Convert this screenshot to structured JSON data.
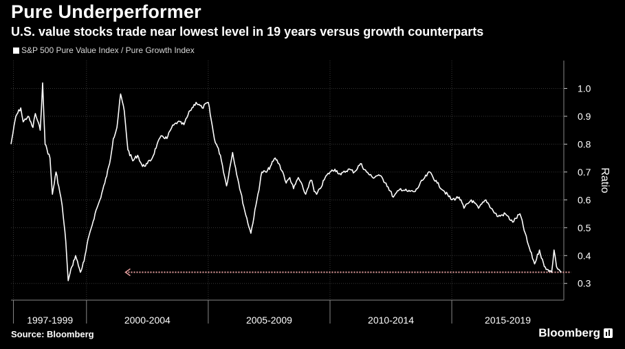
{
  "header": {
    "title": "Pure Underperformer",
    "subtitle": "U.S. value stocks trade near lowest level in 19 years versus growth counterparts"
  },
  "footer": {
    "source": "Source: Bloomberg",
    "brand": "Bloomberg"
  },
  "colors": {
    "background": "#000000",
    "line": "#ffffff",
    "grid": "#3a3a3a",
    "reference_line": "#e8a0a0"
  },
  "chart_data": {
    "type": "line",
    "title": "Pure Underperformer",
    "subtitle": "U.S. value stocks trade near lowest level in 19 years versus growth counterparts",
    "ylabel": "Ratio",
    "xlabel": "",
    "ylim": [
      0.24,
      1.1
    ],
    "xlim": [
      1996.9,
      2019.6
    ],
    "y_axis_position": "right",
    "grid": true,
    "legend": "top-left",
    "yticks": [
      0.3,
      0.4,
      0.5,
      0.6,
      0.7,
      0.8,
      0.9,
      1.0
    ],
    "ytick_labels": [
      "0.3",
      "0.4",
      "0.5",
      "0.6",
      "0.7",
      "0.8",
      "0.9",
      "1.0"
    ],
    "x_periods": [
      {
        "label": "1997-1999",
        "start": 1997,
        "end": 2000
      },
      {
        "label": "2000-2004",
        "start": 2000,
        "end": 2005
      },
      {
        "label": "2005-2009",
        "start": 2005,
        "end": 2010
      },
      {
        "label": "2010-2014",
        "start": 2010,
        "end": 2015
      },
      {
        "label": "2015-2019",
        "start": 2015,
        "end": 2020
      }
    ],
    "series": [
      {
        "name": "S&P 500 Pure Value Index / Pure Growth Index",
        "x": [
          1996.9,
          1997.1,
          1997.3,
          1997.4,
          1997.6,
          1997.8,
          1997.9,
          1998.1,
          1998.2,
          1998.3,
          1998.5,
          1998.6,
          1998.75,
          1998.9,
          1999.0,
          1999.15,
          1999.25,
          1999.4,
          1999.55,
          1999.75,
          1999.9,
          2000.1,
          2000.2,
          2000.35,
          2000.55,
          2000.75,
          2000.95,
          2001.1,
          2001.25,
          2001.4,
          2001.55,
          2001.7,
          2001.9,
          2002.1,
          2002.3,
          2002.5,
          2002.7,
          2002.9,
          2003.1,
          2003.3,
          2003.5,
          2003.75,
          2004.0,
          2004.25,
          2004.5,
          2004.75,
          2005.0,
          2005.25,
          2005.5,
          2005.75,
          2006.0,
          2006.25,
          2006.5,
          2006.75,
          2007.0,
          2007.2,
          2007.4,
          2007.55,
          2007.75,
          2007.9,
          2008.1,
          2008.2,
          2008.35,
          2008.5,
          2008.7,
          2008.9,
          2009.0,
          2009.15,
          2009.25,
          2009.35,
          2009.45,
          2009.6,
          2009.8,
          2010.0,
          2010.2,
          2010.45,
          2010.75,
          2011.0,
          2011.25,
          2011.5,
          2011.75,
          2012.0,
          2012.3,
          2012.6,
          2012.9,
          2013.2,
          2013.5,
          2013.8,
          2014.1,
          2014.4,
          2014.7,
          2015.0,
          2015.3,
          2015.5,
          2015.8,
          2016.1,
          2016.4,
          2016.7,
          2016.9,
          2017.2,
          2017.5,
          2017.8,
          2018.1,
          2018.4,
          2018.6,
          2018.8,
          2018.95,
          2019.1,
          2019.2,
          2019.3,
          2019.4,
          2019.5
        ],
        "values": [
          0.8,
          0.9,
          0.93,
          0.88,
          0.9,
          0.86,
          0.91,
          0.85,
          1.02,
          0.8,
          0.75,
          0.62,
          0.7,
          0.63,
          0.58,
          0.45,
          0.31,
          0.36,
          0.4,
          0.34,
          0.38,
          0.47,
          0.5,
          0.55,
          0.6,
          0.66,
          0.73,
          0.82,
          0.86,
          0.98,
          0.92,
          0.78,
          0.74,
          0.76,
          0.72,
          0.73,
          0.75,
          0.8,
          0.83,
          0.82,
          0.86,
          0.88,
          0.87,
          0.92,
          0.95,
          0.93,
          0.95,
          0.82,
          0.76,
          0.65,
          0.77,
          0.66,
          0.56,
          0.48,
          0.6,
          0.7,
          0.7,
          0.72,
          0.75,
          0.73,
          0.69,
          0.66,
          0.68,
          0.64,
          0.68,
          0.64,
          0.62,
          0.66,
          0.67,
          0.63,
          0.62,
          0.64,
          0.68,
          0.7,
          0.71,
          0.69,
          0.71,
          0.7,
          0.73,
          0.7,
          0.68,
          0.69,
          0.66,
          0.61,
          0.64,
          0.63,
          0.63,
          0.67,
          0.7,
          0.66,
          0.63,
          0.6,
          0.61,
          0.57,
          0.6,
          0.57,
          0.6,
          0.56,
          0.54,
          0.55,
          0.52,
          0.55,
          0.45,
          0.37,
          0.42,
          0.36,
          0.35,
          0.34,
          0.42,
          0.36,
          0.35,
          0.34
        ]
      }
    ],
    "reference_line": {
      "y": 0.34,
      "x_start": 2001.6,
      "x_end": 2019.9,
      "style": "dotted",
      "arrow": "left"
    }
  }
}
